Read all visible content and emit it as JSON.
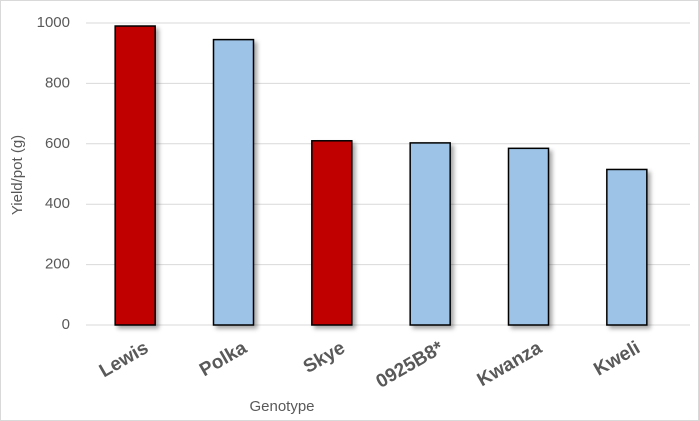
{
  "chart_data": {
    "type": "bar",
    "x_label": "Genotype",
    "y_label": "Yield/pot (g)",
    "categories": [
      "Lewis",
      "Polka",
      "Skye",
      "0925B8*",
      "Kwanza",
      "Kweli"
    ],
    "values": [
      990,
      945,
      610,
      603,
      585,
      515
    ],
    "colors": [
      "#c00000",
      "#9dc3e6",
      "#c00000",
      "#9dc3e6",
      "#9dc3e6",
      "#9dc3e6"
    ],
    "ylim": [
      0,
      1000
    ],
    "yticks": [
      0,
      200,
      400,
      600,
      800,
      1000
    ],
    "grid": true
  }
}
